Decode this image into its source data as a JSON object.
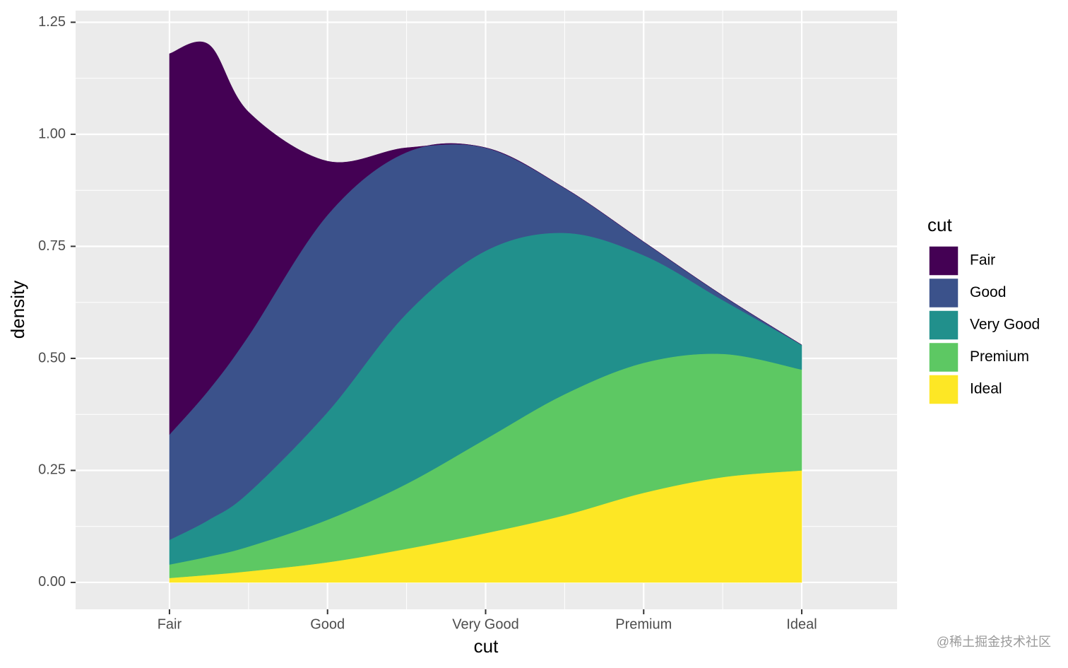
{
  "chart_data": {
    "type": "stacked_density",
    "x_label": "cut",
    "y_label": "density",
    "x": [
      1,
      1.25,
      1.5,
      2,
      2.5,
      3,
      3.5,
      4,
      4.5,
      5
    ],
    "series": [
      {
        "name": "Fair",
        "color": "#440154",
        "values": [
          0.85,
          0.77,
          0.5,
          0.12,
          0.01,
          0,
          0,
          0,
          0,
          0
        ]
      },
      {
        "name": "Good",
        "color": "#3b528b",
        "values": [
          0.235,
          0.29,
          0.35,
          0.44,
          0.36,
          0.23,
          0.1,
          0.03,
          0.01,
          0
        ]
      },
      {
        "name": "Very Good",
        "color": "#21908c",
        "values": [
          0.055,
          0.082,
          0.12,
          0.24,
          0.38,
          0.42,
          0.36,
          0.24,
          0.12,
          0.055
        ]
      },
      {
        "name": "Premium",
        "color": "#5dc863",
        "values": [
          0.03,
          0.041,
          0.055,
          0.095,
          0.145,
          0.21,
          0.27,
          0.29,
          0.275,
          0.225
        ]
      },
      {
        "name": "Ideal",
        "color": "#fde725",
        "values": [
          0.01,
          0.017,
          0.025,
          0.045,
          0.075,
          0.11,
          0.15,
          0.2,
          0.235,
          0.25
        ]
      }
    ],
    "xlim": [
      0.406,
      5.603
    ],
    "ylim": [
      -0.06,
      1.276
    ],
    "xticks": [
      {
        "value": 1,
        "label": "Fair"
      },
      {
        "value": 2,
        "label": "Good"
      },
      {
        "value": 3,
        "label": "Very Good"
      },
      {
        "value": 4,
        "label": "Premium"
      },
      {
        "value": 5,
        "label": "Ideal"
      }
    ],
    "yticks": [
      {
        "value": 0,
        "label": "0.00"
      },
      {
        "value": 0.25,
        "label": "0.25"
      },
      {
        "value": 0.5,
        "label": "0.50"
      },
      {
        "value": 0.75,
        "label": "0.75"
      },
      {
        "value": 1,
        "label": "1.00"
      },
      {
        "value": 1.25,
        "label": "1.25"
      }
    ],
    "legend_title": "cut",
    "legend_position": "right",
    "grid": true,
    "watermark": "@稀土掘金技术社区"
  }
}
